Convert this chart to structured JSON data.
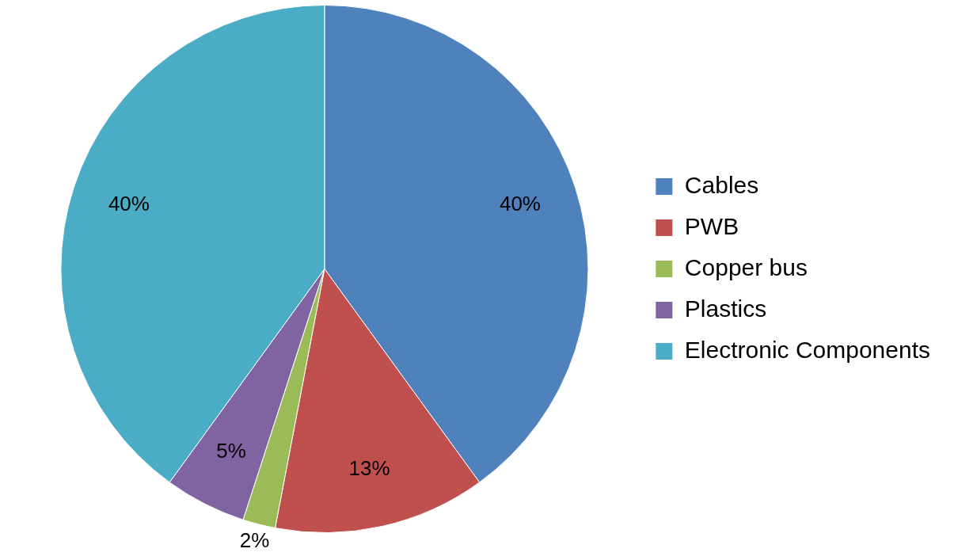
{
  "chart_data": {
    "type": "pie",
    "categories": [
      "Cables",
      "PWB",
      "Copper bus",
      "Plastics",
      "Electronic Components"
    ],
    "values": [
      40,
      13,
      2,
      5,
      40
    ],
    "colors": [
      "#4f81bd",
      "#c0504d",
      "#9bbb59",
      "#8064a2",
      "#4bacc6"
    ],
    "value_labels": [
      "40%",
      "13%",
      "2%",
      "5%",
      "40%"
    ],
    "legend": "right"
  }
}
